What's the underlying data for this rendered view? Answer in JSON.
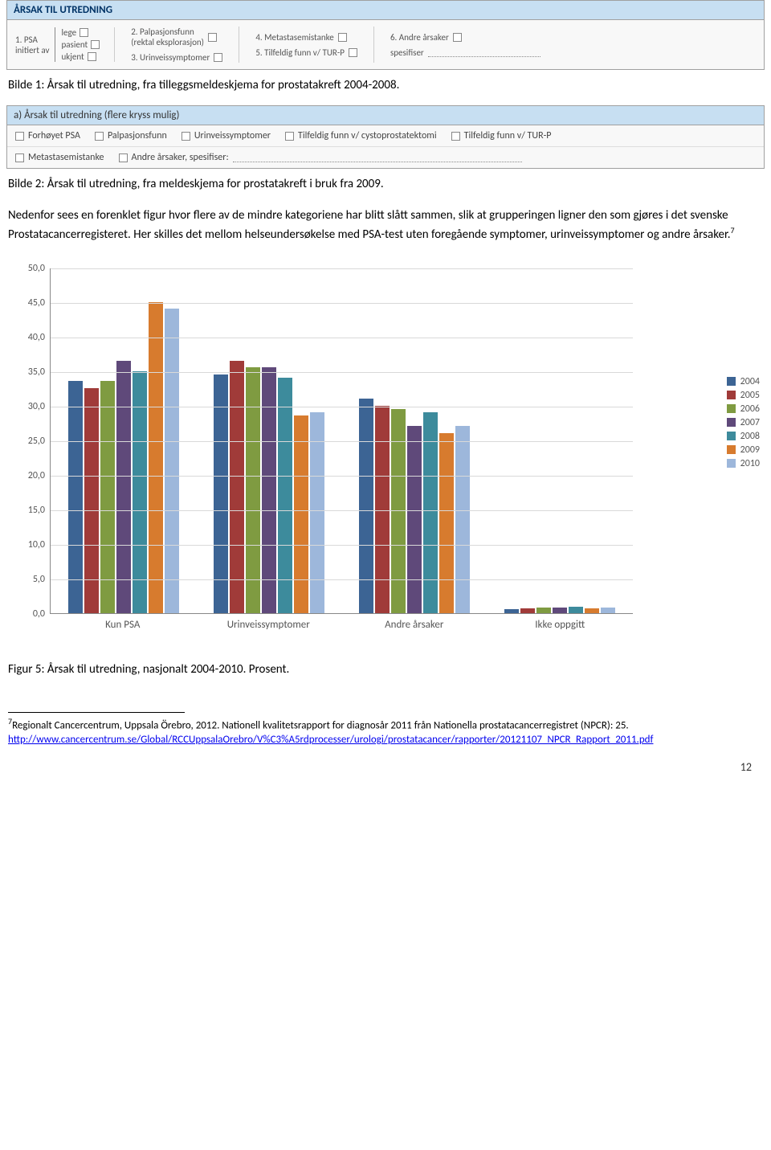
{
  "form1": {
    "header": "ÅRSAK TIL UTREDNING",
    "left_label_1": "1. PSA",
    "left_label_2": "initiert av",
    "options": {
      "lege": "lege",
      "pasient": "pasient",
      "ukjent": "ukjent"
    },
    "col2": {
      "item2": "2. Palpasjonsfunn",
      "item2_sub": "(rektal eksplorasjon)",
      "item3": "3. Urinveissymptomer"
    },
    "col3": {
      "item4": "4. Metastasemistanke",
      "item5": "5. Tilfeldig funn v/ TUR-P"
    },
    "col4": {
      "item6": "6. Andre årsaker",
      "spes": "spesifiser"
    }
  },
  "caption1": "Bilde 1: Årsak til utredning, fra tilleggsmeldeskjema for prostatakreft 2004-2008.",
  "form2": {
    "header": "a) Årsak til utredning (flere kryss mulig)",
    "row1": {
      "a": "Forhøyet PSA",
      "b": "Palpasjonsfunn",
      "c": "Urinveissymptomer",
      "d": "Tilfeldig funn v/ cystoprostatektomi",
      "e": "Tilfeldig funn v/ TUR-P"
    },
    "row2": {
      "a": "Metastasemistanke",
      "b": "Andre årsaker, spesifiser:"
    }
  },
  "caption2": "Bilde 2: Årsak til utredning, fra meldeskjema for prostatakreft i bruk fra 2009.",
  "para": "Nedenfor sees en forenklet figur hvor flere av de mindre kategoriene har blitt slått sammen, slik at grupperingen ligner den som gjøres i det svenske Prostatacancerregisteret. Her skilles det mellom helseundersøkelse med PSA-test uten foregående symptomer, urinveissymptomer og andre årsaker.",
  "para_sup": "7",
  "chart": {
    "ymax": 50,
    "yticks": [
      "0,0",
      "5,0",
      "10,0",
      "15,0",
      "20,0",
      "25,0",
      "30,0",
      "35,0",
      "40,0",
      "45,0",
      "50,0"
    ],
    "categories": [
      "Kun PSA",
      "Urinveissymptomer",
      "Andre årsaker",
      "Ikke oppgitt"
    ],
    "series": [
      {
        "label": "2004",
        "color": "#3c6494"
      },
      {
        "label": "2005",
        "color": "#a03b39"
      },
      {
        "label": "2006",
        "color": "#7f9b41"
      },
      {
        "label": "2007",
        "color": "#5f497a"
      },
      {
        "label": "2008",
        "color": "#3d8b9c"
      },
      {
        "label": "2009",
        "color": "#d77b2e"
      },
      {
        "label": "2010",
        "color": "#9db7db"
      }
    ],
    "data": [
      [
        33.5,
        32.5,
        33.5,
        36.5,
        35.0,
        45.0,
        44.0
      ],
      [
        34.5,
        36.5,
        35.5,
        35.5,
        34.0,
        28.5,
        29.0
      ],
      [
        31.0,
        30.0,
        29.5,
        27.0,
        29.0,
        26.0,
        27.0
      ],
      [
        0.5,
        0.6,
        0.7,
        0.8,
        0.9,
        0.6,
        0.7
      ]
    ]
  },
  "caption3": "Figur 5: Årsak til utredning, nasjonalt 2004-2010. Prosent.",
  "footnote": {
    "sup": "7",
    "text1": "Regionalt Cancercentrum, Uppsala Örebro, 2012. Nationell kvalitetsrapport for diagnosår 2011 från Nationella prostatacancerregistret (NPCR): 25.",
    "link": "http://www.cancercentrum.se/Global/RCCUppsalaOrebro/V%C3%A5rdprocesser/urologi/prostatacancer/rapporter/20121107_NPCR_Rapport_2011.pdf"
  },
  "pagenum": "12"
}
